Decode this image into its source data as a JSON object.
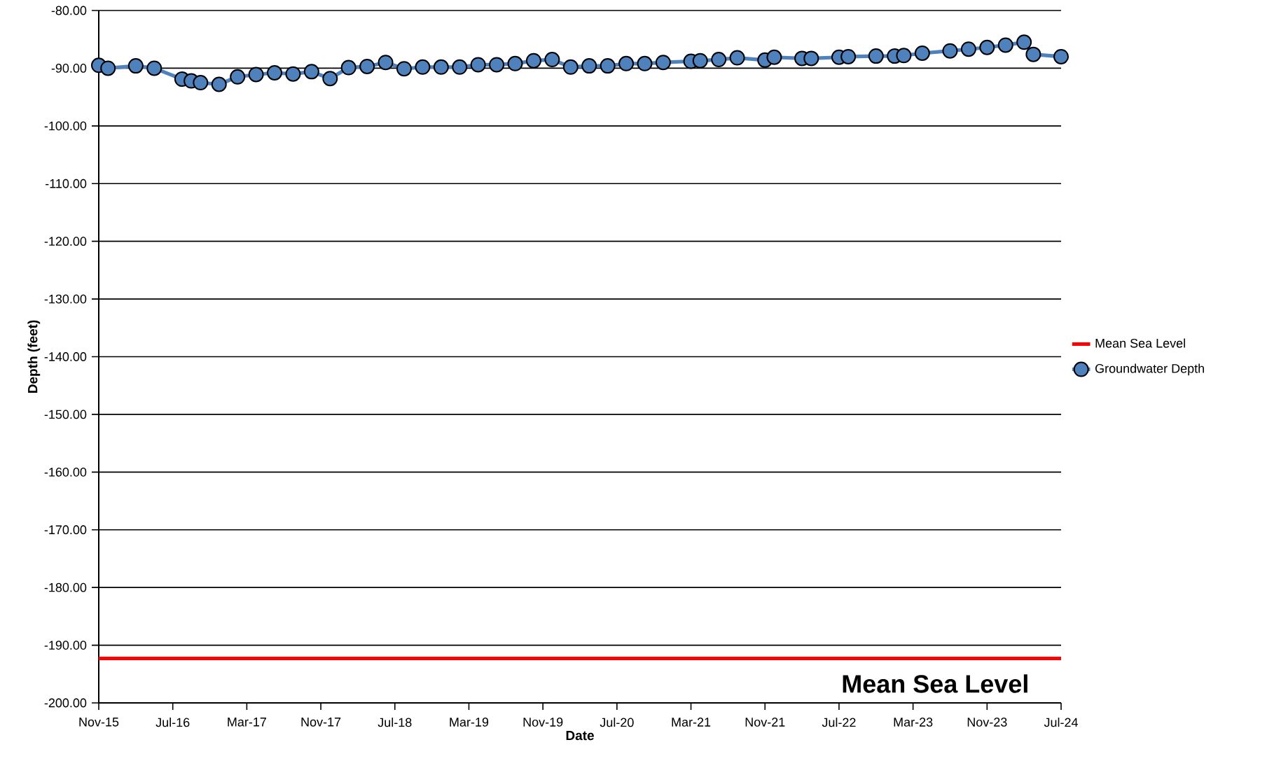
{
  "chart_data": {
    "type": "line",
    "xlabel": "Date",
    "ylabel": "Depth (feet)",
    "x": [
      "2015-11",
      "2015-12",
      "2016-03",
      "2016-05",
      "2016-08",
      "2016-09",
      "2016-10",
      "2016-12",
      "2017-02",
      "2017-04",
      "2017-06",
      "2017-08",
      "2017-10",
      "2017-12",
      "2018-02",
      "2018-04",
      "2018-06",
      "2018-08",
      "2018-10",
      "2018-12",
      "2019-02",
      "2019-04",
      "2019-06",
      "2019-08",
      "2019-10",
      "2019-12",
      "2020-02",
      "2020-04",
      "2020-06",
      "2020-08",
      "2020-10",
      "2020-12",
      "2021-03",
      "2021-04",
      "2021-06",
      "2021-08",
      "2021-11",
      "2021-12",
      "2022-03",
      "2022-04",
      "2022-07",
      "2022-08",
      "2022-11",
      "2023-01",
      "2023-02",
      "2023-04",
      "2023-07",
      "2023-09",
      "2023-11",
      "2024-01",
      "2024-03",
      "2024-04",
      "2024-07"
    ],
    "series": [
      {
        "name": "Groundwater Depth",
        "color": "#4f81bd",
        "values": [
          -89.5,
          -90.0,
          -89.6,
          -90.0,
          -91.9,
          -92.2,
          -92.5,
          -92.8,
          -91.5,
          -91.1,
          -90.8,
          -91.0,
          -90.6,
          -91.8,
          -89.9,
          -89.7,
          -89.0,
          -90.1,
          -89.8,
          -89.8,
          -89.8,
          -89.4,
          -89.4,
          -89.2,
          -88.7,
          -88.5,
          -89.8,
          -89.6,
          -89.6,
          -89.2,
          -89.2,
          -89.0,
          -88.8,
          -88.7,
          -88.5,
          -88.2,
          -88.6,
          -88.1,
          -88.3,
          -88.3,
          -88.1,
          -88.0,
          -87.9,
          -87.9,
          -87.8,
          -87.4,
          -87.0,
          -86.7,
          -86.4,
          -86.0,
          -85.5,
          -87.6,
          -88.0
        ]
      }
    ],
    "ref_lines": [
      {
        "axis": "y",
        "value": -192.3,
        "label": "Mean Sea Level",
        "color": "#ff0000"
      }
    ],
    "annotations": [
      "Mean Sea Level"
    ],
    "xlim": [
      "2015-11",
      "2024-07"
    ],
    "xticks": [
      {
        "value": "2015-11",
        "label": "Nov-15"
      },
      {
        "value": "2016-07",
        "label": "Jul-16"
      },
      {
        "value": "2017-03",
        "label": "Mar-17"
      },
      {
        "value": "2017-11",
        "label": "Nov-17"
      },
      {
        "value": "2018-07",
        "label": "Jul-18"
      },
      {
        "value": "2019-03",
        "label": "Mar-19"
      },
      {
        "value": "2019-11",
        "label": "Nov-19"
      },
      {
        "value": "2020-07",
        "label": "Jul-20"
      },
      {
        "value": "2021-03",
        "label": "Mar-21"
      },
      {
        "value": "2021-11",
        "label": "Nov-21"
      },
      {
        "value": "2022-07",
        "label": "Jul-22"
      },
      {
        "value": "2023-03",
        "label": "Mar-23"
      },
      {
        "value": "2023-11",
        "label": "Nov-23"
      },
      {
        "value": "2024-07",
        "label": "Jul-24"
      }
    ],
    "ylim": [
      -200,
      -80
    ],
    "yticks": [
      {
        "value": -200,
        "label": "-200.00"
      },
      {
        "value": -190,
        "label": "-190.00"
      },
      {
        "value": -180,
        "label": "-180.00"
      },
      {
        "value": -170,
        "label": "-170.00"
      },
      {
        "value": -160,
        "label": "-160.00"
      },
      {
        "value": -150,
        "label": "-150.00"
      },
      {
        "value": -140,
        "label": "-140.00"
      },
      {
        "value": -130,
        "label": "-130.00"
      },
      {
        "value": -120,
        "label": "-120.00"
      },
      {
        "value": -110,
        "label": "-110.00"
      },
      {
        "value": -100,
        "label": "-100.00"
      },
      {
        "value": -90,
        "label": "-90.00"
      },
      {
        "value": -80,
        "label": "-80.00"
      }
    ],
    "grid": "y",
    "legend": "right",
    "marker": "circle",
    "line_style": "solid"
  }
}
